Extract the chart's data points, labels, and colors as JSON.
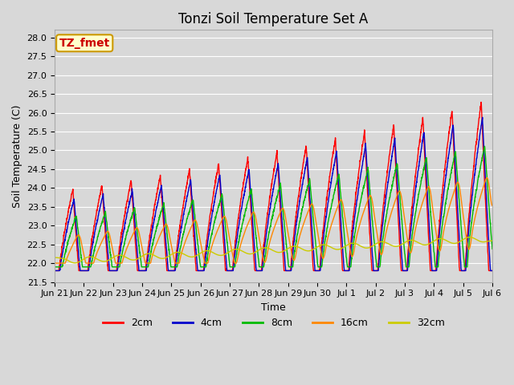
{
  "title": "Tonzi Soil Temperature Set A",
  "xlabel": "Time",
  "ylabel": "Soil Temperature (C)",
  "ylim": [
    21.5,
    28.2
  ],
  "annotation_text": "TZ_fmet",
  "annotation_color": "#cc0000",
  "annotation_bg": "#ffffcc",
  "annotation_border": "#cc9900",
  "series_labels": [
    "2cm",
    "4cm",
    "8cm",
    "16cm",
    "32cm"
  ],
  "series_colors": [
    "#ff0000",
    "#0000cc",
    "#00bb00",
    "#ff8800",
    "#cccc00"
  ],
  "series_linewidths": [
    1.0,
    1.0,
    1.0,
    1.0,
    1.0
  ],
  "background_color": "#d8d8d8",
  "plot_bg_color": "#d8d8d8",
  "grid_color": "#ffffff",
  "tick_labels": [
    "Jun 21",
    "Jun 22",
    "Jun 23",
    "Jun 24",
    "Jun 25",
    "Jun 26",
    "Jun 27",
    "Jun 28",
    "Jun 29",
    "Jun 30",
    "Jul 1",
    "Jul 2",
    "Jul 3",
    "Jul 4",
    "Jul 5",
    "Jul 6"
  ],
  "yticks": [
    21.5,
    22.0,
    22.5,
    23.0,
    23.5,
    24.0,
    24.5,
    25.0,
    25.5,
    26.0,
    26.5,
    27.0,
    27.5,
    28.0
  ],
  "title_fontsize": 12,
  "axis_label_fontsize": 9,
  "tick_fontsize": 8,
  "legend_fontsize": 9
}
